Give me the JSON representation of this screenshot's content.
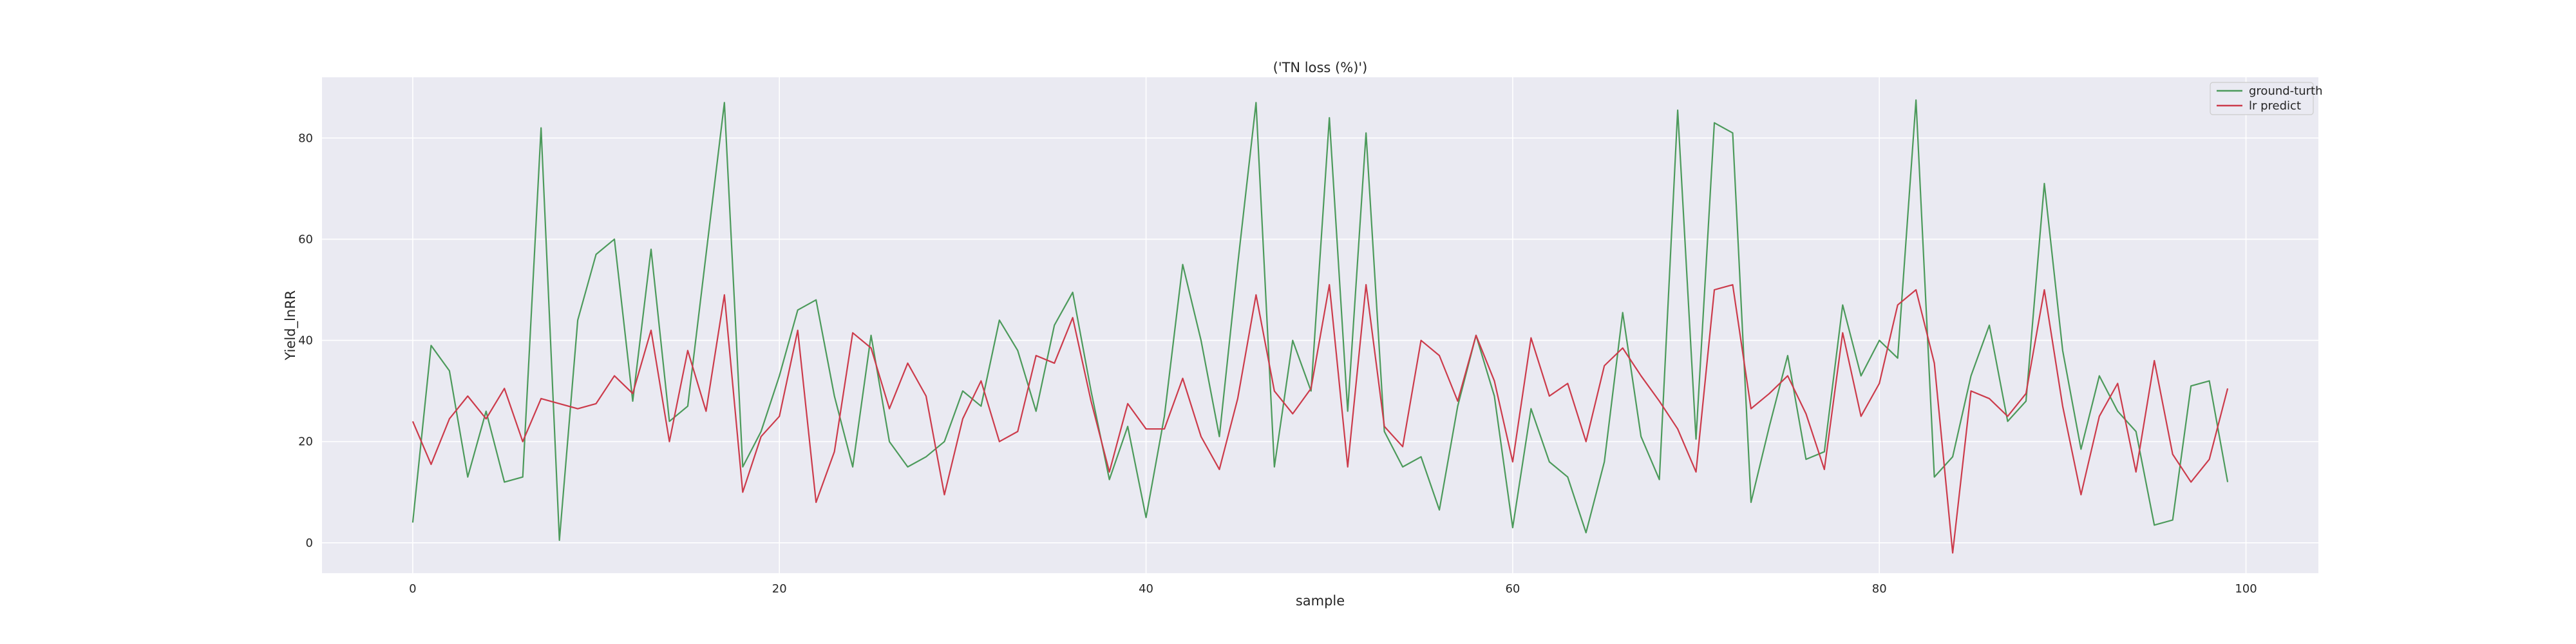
{
  "chart_data": {
    "type": "line",
    "title": "('TN loss (%)')",
    "xlabel": "sample",
    "ylabel": "Yield_lnRR",
    "xlim": [
      -4.95,
      103.95
    ],
    "ylim": [
      -6,
      92
    ],
    "xticks": [
      0,
      20,
      40,
      60,
      80,
      100
    ],
    "yticks": [
      0,
      20,
      40,
      60,
      80
    ],
    "grid": true,
    "legend_position": "top-right",
    "x": [
      0,
      1,
      2,
      3,
      4,
      5,
      6,
      7,
      8,
      9,
      10,
      11,
      12,
      13,
      14,
      15,
      16,
      17,
      18,
      19,
      20,
      21,
      22,
      23,
      24,
      25,
      26,
      27,
      28,
      29,
      30,
      31,
      32,
      33,
      34,
      35,
      36,
      37,
      38,
      39,
      40,
      41,
      42,
      43,
      44,
      45,
      46,
      47,
      48,
      49,
      50,
      51,
      52,
      53,
      54,
      55,
      56,
      57,
      58,
      59,
      60,
      61,
      62,
      63,
      64,
      65,
      66,
      67,
      68,
      69,
      70,
      71,
      72,
      73,
      74,
      75,
      76,
      77,
      78,
      79,
      80,
      81,
      82,
      83,
      84,
      85,
      86,
      87,
      88,
      89,
      90,
      91,
      92,
      93,
      94,
      95,
      96,
      97,
      98,
      99
    ],
    "series": [
      {
        "name": "ground-turth",
        "color": "#4c9a5b",
        "values": [
          4,
          39,
          34,
          13,
          26,
          12,
          13,
          82,
          0.5,
          44,
          57,
          60,
          28,
          58,
          24,
          27,
          57,
          87,
          15,
          22,
          33,
          46,
          48,
          29,
          15,
          41,
          20,
          15,
          17,
          20,
          30,
          27,
          44,
          38,
          26,
          43,
          49.5,
          30,
          12.5,
          23,
          5,
          25,
          55,
          40,
          21,
          55,
          87,
          15,
          40,
          30,
          84,
          26,
          81,
          22,
          15,
          17,
          6.5,
          27,
          41,
          29,
          3,
          26.5,
          16,
          13,
          2,
          16,
          45.5,
          21,
          12.5,
          85.5,
          20.5,
          83,
          81,
          8,
          23,
          37,
          16.5,
          18,
          47,
          33,
          40,
          36.5,
          87.5,
          13,
          17,
          33,
          43,
          24,
          28,
          71,
          38,
          18.5,
          33,
          26,
          22,
          3.5,
          4.5,
          31,
          32,
          12
        ]
      },
      {
        "name": "lr predict",
        "color": "#cc3b4b",
        "values": [
          24,
          15.5,
          24.5,
          29,
          24.5,
          30.5,
          20,
          28.5,
          27.5,
          26.5,
          27.5,
          33,
          29.5,
          42,
          20,
          38,
          26,
          49,
          10,
          21,
          25,
          42,
          8,
          18,
          41.5,
          38.5,
          26.5,
          35.5,
          29,
          9.5,
          24.5,
          32,
          20,
          22,
          37,
          35.5,
          44.5,
          28,
          14,
          27.5,
          22.5,
          22.5,
          32.5,
          21,
          14.5,
          28.5,
          49,
          30,
          25.5,
          30.5,
          51,
          15,
          51,
          23,
          19,
          40,
          37,
          28,
          41,
          32,
          16,
          40.5,
          29,
          31.5,
          20,
          35,
          38.5,
          33,
          28,
          22.5,
          14,
          50,
          51,
          26.5,
          29.5,
          33,
          25.5,
          14.5,
          41.5,
          25,
          31.5,
          47,
          50,
          35.5,
          -2,
          30,
          28.5,
          25,
          29.5,
          50,
          27,
          9.5,
          25,
          31.5,
          14,
          36,
          17.5,
          12,
          16.5,
          30.5
        ]
      }
    ]
  }
}
